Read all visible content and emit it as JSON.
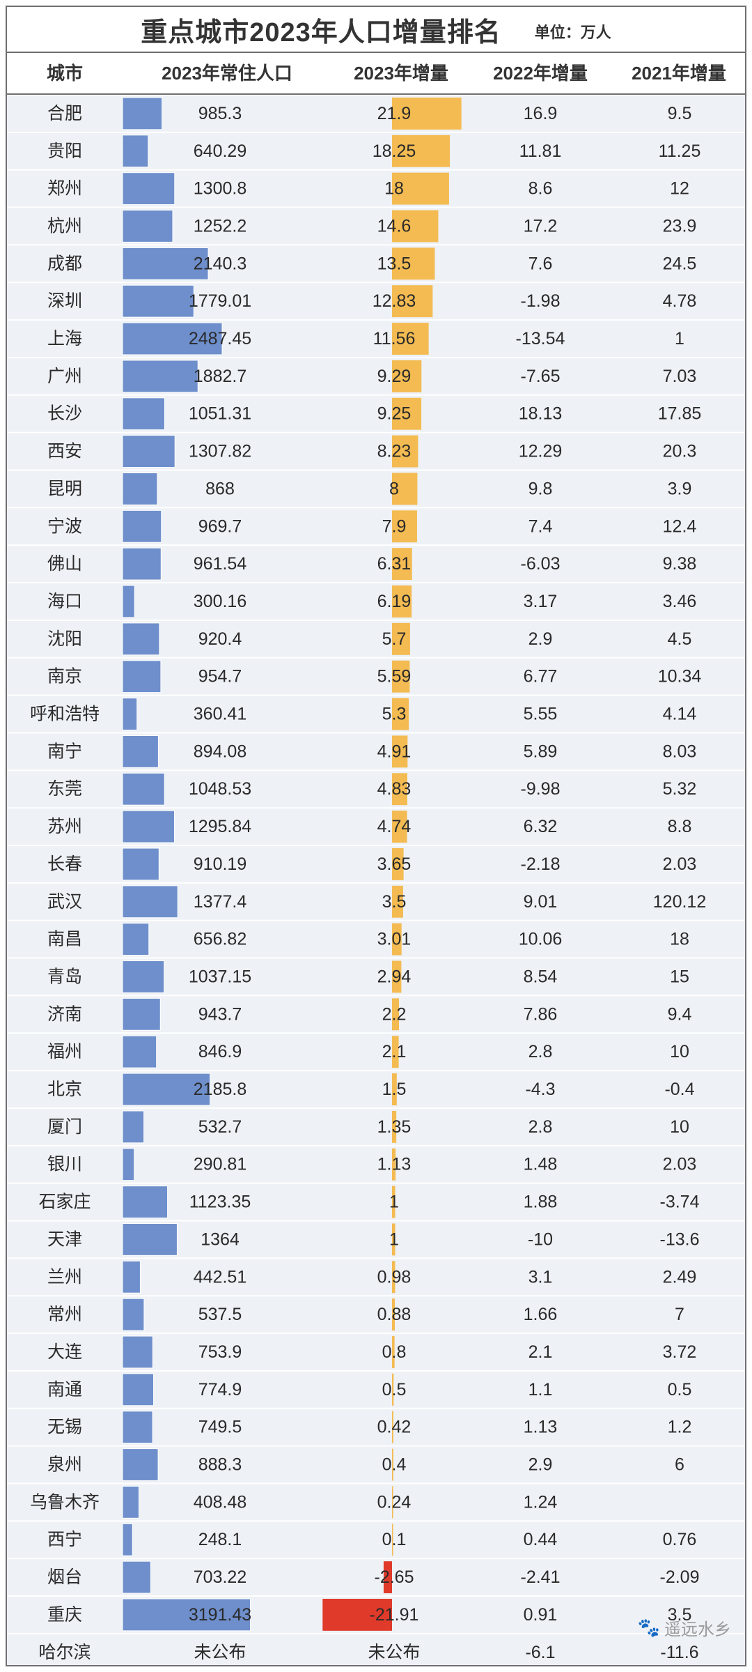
{
  "title": "重点城市2023年人口增量排名",
  "unit_label": "单位：万人",
  "headers": [
    "城市",
    "2023年常住人口",
    "2023年增量",
    "2022年增量",
    "2021年增量"
  ],
  "watermark": "遥远水乡",
  "colors": {
    "population_bar": "#6e8fcb",
    "increment_positive": "#f3bb52",
    "increment_negative": "#e03a2b",
    "row_background": "#eef1f5"
  },
  "chart_data": {
    "type": "table",
    "columns": [
      "城市",
      "2023年常住人口",
      "2023年增量",
      "2022年增量",
      "2021年增量"
    ],
    "bar_columns": [
      "2023年常住人口",
      "2023年增量"
    ],
    "rows": [
      [
        "合肥",
        "985.3",
        "21.9",
        "16.9",
        "9.5"
      ],
      [
        "贵阳",
        "640.29",
        "18.25",
        "11.81",
        "11.25"
      ],
      [
        "郑州",
        "1300.8",
        "18",
        "8.6",
        "12"
      ],
      [
        "杭州",
        "1252.2",
        "14.6",
        "17.2",
        "23.9"
      ],
      [
        "成都",
        "2140.3",
        "13.5",
        "7.6",
        "24.5"
      ],
      [
        "深圳",
        "1779.01",
        "12.83",
        "-1.98",
        "4.78"
      ],
      [
        "上海",
        "2487.45",
        "11.56",
        "-13.54",
        "1"
      ],
      [
        "广州",
        "1882.7",
        "9.29",
        "-7.65",
        "7.03"
      ],
      [
        "长沙",
        "1051.31",
        "9.25",
        "18.13",
        "17.85"
      ],
      [
        "西安",
        "1307.82",
        "8.23",
        "12.29",
        "20.3"
      ],
      [
        "昆明",
        "868",
        "8",
        "9.8",
        "3.9"
      ],
      [
        "宁波",
        "969.7",
        "7.9",
        "7.4",
        "12.4"
      ],
      [
        "佛山",
        "961.54",
        "6.31",
        "-6.03",
        "9.38"
      ],
      [
        "海口",
        "300.16",
        "6.19",
        "3.17",
        "3.46"
      ],
      [
        "沈阳",
        "920.4",
        "5.7",
        "2.9",
        "4.5"
      ],
      [
        "南京",
        "954.7",
        "5.59",
        "6.77",
        "10.34"
      ],
      [
        "呼和浩特",
        "360.41",
        "5.3",
        "5.55",
        "4.14"
      ],
      [
        "南宁",
        "894.08",
        "4.91",
        "5.89",
        "8.03"
      ],
      [
        "东莞",
        "1048.53",
        "4.83",
        "-9.98",
        "5.32"
      ],
      [
        "苏州",
        "1295.84",
        "4.74",
        "6.32",
        "8.8"
      ],
      [
        "长春",
        "910.19",
        "3.65",
        "-2.18",
        "2.03"
      ],
      [
        "武汉",
        "1377.4",
        "3.5",
        "9.01",
        "120.12"
      ],
      [
        "南昌",
        "656.82",
        "3.01",
        "10.06",
        "18"
      ],
      [
        "青岛",
        "1037.15",
        "2.94",
        "8.54",
        "15"
      ],
      [
        "济南",
        "943.7",
        "2.2",
        "7.86",
        "9.4"
      ],
      [
        "福州",
        "846.9",
        "2.1",
        "2.8",
        "10"
      ],
      [
        "北京",
        "2185.8",
        "1.5",
        "-4.3",
        "-0.4"
      ],
      [
        "厦门",
        "532.7",
        "1.35",
        "2.8",
        "10"
      ],
      [
        "银川",
        "290.81",
        "1.13",
        "1.48",
        "2.03"
      ],
      [
        "石家庄",
        "1123.35",
        "1",
        "1.88",
        "-3.74"
      ],
      [
        "天津",
        "1364",
        "1",
        "-10",
        "-13.6"
      ],
      [
        "兰州",
        "442.51",
        "0.98",
        "3.1",
        "2.49"
      ],
      [
        "常州",
        "537.5",
        "0.88",
        "1.66",
        "7"
      ],
      [
        "大连",
        "753.9",
        "0.8",
        "2.1",
        "3.72"
      ],
      [
        "南通",
        "774.9",
        "0.5",
        "1.1",
        "0.5"
      ],
      [
        "无锡",
        "749.5",
        "0.42",
        "1.13",
        "1.2"
      ],
      [
        "泉州",
        "888.3",
        "0.4",
        "2.9",
        "6"
      ],
      [
        "乌鲁木齐",
        "408.48",
        "0.24",
        "1.24",
        ""
      ],
      [
        "西宁",
        "248.1",
        "0.1",
        "0.44",
        "0.76"
      ],
      [
        "烟台",
        "703.22",
        "-2.65",
        "-2.41",
        "-2.09"
      ],
      [
        "重庆",
        "3191.43",
        "-21.91",
        "0.91",
        "3.5"
      ],
      [
        "哈尔滨",
        "未公布",
        "未公布",
        "-6.1",
        "-11.6"
      ]
    ]
  }
}
